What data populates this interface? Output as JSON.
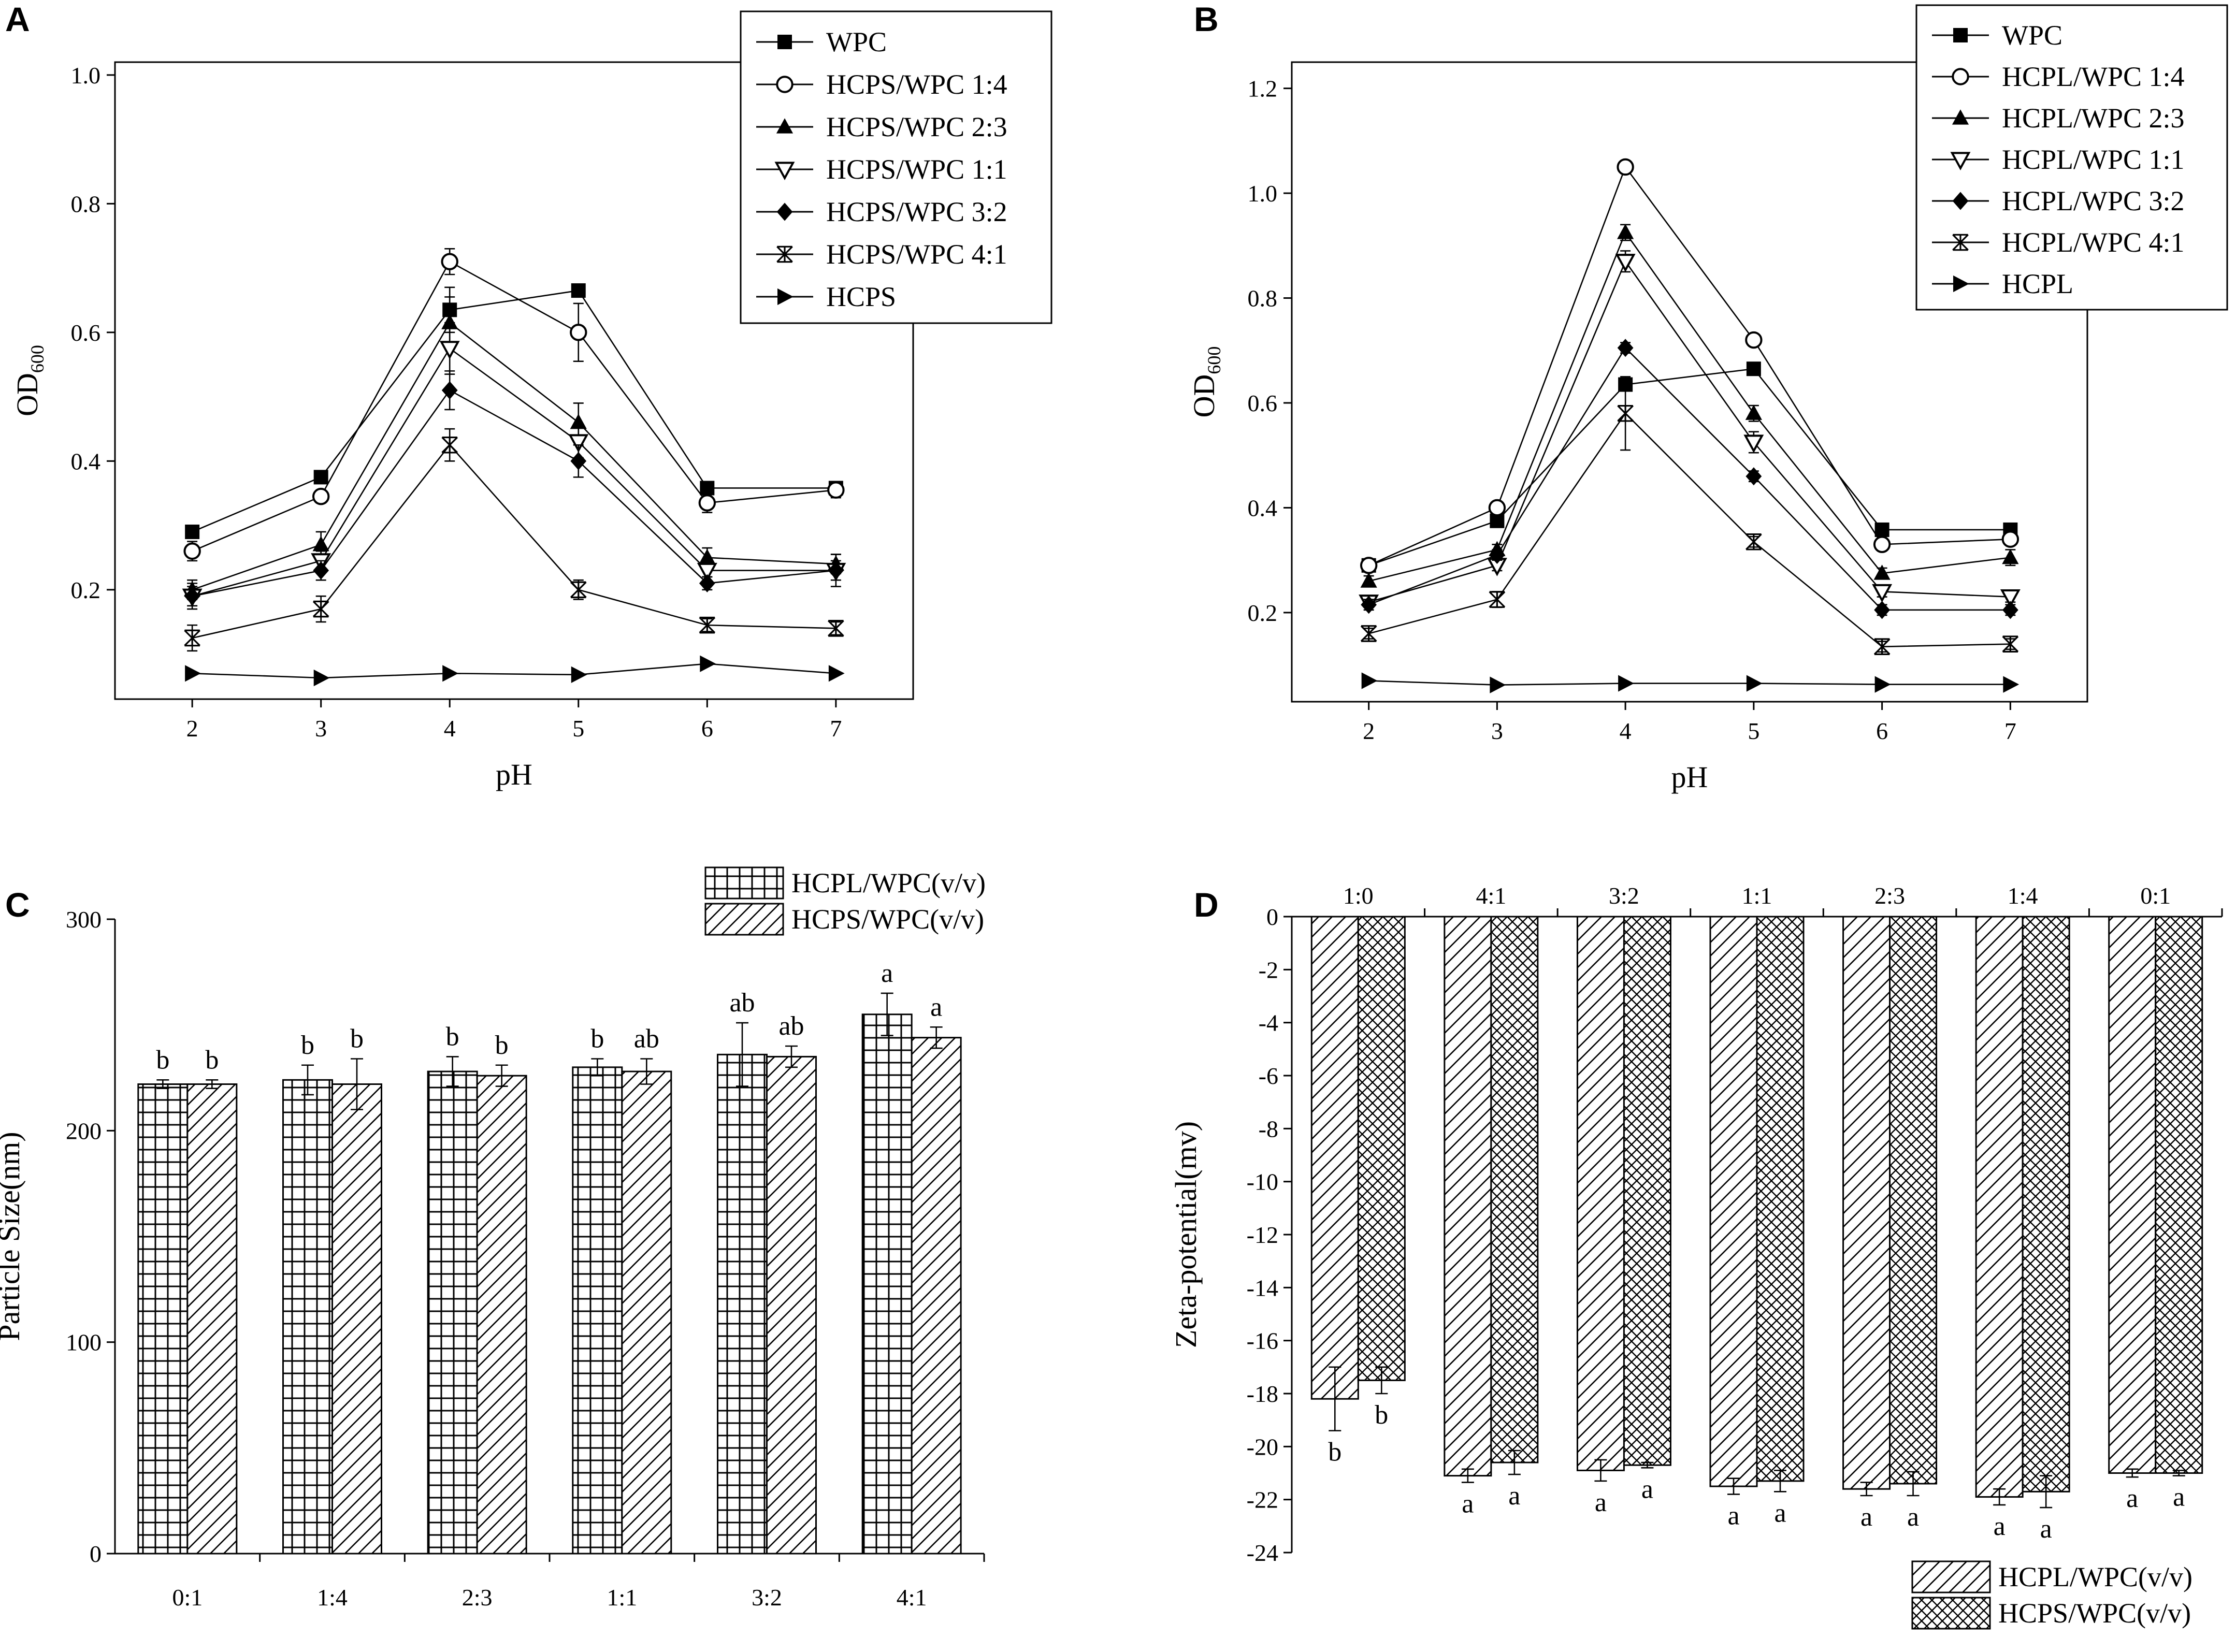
{
  "chart_data": [
    {
      "panel": "A",
      "type": "line",
      "xlabel": "pH",
      "ylabel": "OD",
      "ylabel_sub": "600",
      "x": [
        2,
        3,
        4,
        5,
        6,
        7
      ],
      "xlim": [
        1.4,
        7.6
      ],
      "ylim": [
        0.03,
        1.02
      ],
      "xticks": [
        "2",
        "3",
        "4",
        "5",
        "6",
        "7"
      ],
      "yticks": [
        "0.2",
        "0.4",
        "0.6",
        "0.8",
        "1.0"
      ],
      "legend_position": "top-right",
      "series": [
        {
          "name": "WPC",
          "marker": "square-filled",
          "values": [
            0.29,
            0.375,
            0.635,
            0.665,
            0.358,
            0.358
          ],
          "errors": [
            0.008,
            0.008,
            0.035,
            0.008,
            0.008,
            0.008
          ]
        },
        {
          "name": "HCPS/WPC 1:4",
          "marker": "circle-open",
          "values": [
            0.26,
            0.345,
            0.71,
            0.6,
            0.335,
            0.355
          ],
          "errors": [
            0.015,
            0.01,
            0.02,
            0.045,
            0.015,
            0.012
          ]
        },
        {
          "name": "HCPS/WPC 2:3",
          "marker": "triangle-up-filled",
          "values": [
            0.2,
            0.27,
            0.615,
            0.46,
            0.25,
            0.24
          ],
          "errors": [
            0.015,
            0.02,
            0.04,
            0.03,
            0.015,
            0.015
          ]
        },
        {
          "name": "HCPS/WPC 1:1",
          "marker": "triangle-down-open",
          "values": [
            0.19,
            0.245,
            0.575,
            0.43,
            0.23,
            0.23
          ],
          "errors": [
            0.02,
            0.015,
            0.04,
            0.025,
            0.01,
            0.015
          ]
        },
        {
          "name": "HCPS/WPC 3:2",
          "marker": "diamond-filled",
          "values": [
            0.19,
            0.23,
            0.51,
            0.4,
            0.21,
            0.23
          ],
          "errors": [
            0.015,
            0.015,
            0.03,
            0.025,
            0.01,
            0.025
          ]
        },
        {
          "name": "HCPS/WPC 4:1",
          "marker": "star-x",
          "values": [
            0.125,
            0.17,
            0.425,
            0.2,
            0.145,
            0.14
          ],
          "errors": [
            0.02,
            0.02,
            0.025,
            0.015,
            0.01,
            0.01
          ]
        },
        {
          "name": "HCPS",
          "marker": "triangle-right-filled",
          "values": [
            0.07,
            0.063,
            0.07,
            0.068,
            0.085,
            0.07
          ],
          "errors": [
            0,
            0,
            0,
            0,
            0,
            0
          ]
        }
      ]
    },
    {
      "panel": "B",
      "type": "line",
      "xlabel": "pH",
      "ylabel": "OD",
      "ylabel_sub": "600",
      "x": [
        2,
        3,
        4,
        5,
        6,
        7
      ],
      "xlim": [
        1.4,
        7.6
      ],
      "ylim": [
        0.03,
        1.25
      ],
      "xticks": [
        "2",
        "3",
        "4",
        "5",
        "6",
        "7"
      ],
      "yticks": [
        "0.2",
        "0.4",
        "0.6",
        "0.8",
        "1.0",
        "1.2"
      ],
      "legend_position": "top-right",
      "series": [
        {
          "name": "WPC",
          "marker": "square-filled",
          "values": [
            0.29,
            0.375,
            0.635,
            0.665,
            0.358,
            0.358
          ],
          "errors": [
            0.008,
            0.008,
            0.008,
            0.008,
            0.008,
            0.008
          ]
        },
        {
          "name": "HCPL/WPC 1:4",
          "marker": "circle-open",
          "values": [
            0.29,
            0.4,
            1.05,
            0.72,
            0.33,
            0.34
          ],
          "errors": [
            0.01,
            0.01,
            0.01,
            0.01,
            0.01,
            0.01
          ]
        },
        {
          "name": "HCPL/WPC 2:3",
          "marker": "triangle-up-filled",
          "values": [
            0.26,
            0.32,
            0.925,
            0.58,
            0.275,
            0.305
          ],
          "errors": [
            0.01,
            0.01,
            0.015,
            0.015,
            0.01,
            0.015
          ]
        },
        {
          "name": "HCPL/WPC 1:1",
          "marker": "triangle-down-open",
          "values": [
            0.22,
            0.29,
            0.87,
            0.525,
            0.24,
            0.23
          ],
          "errors": [
            0.01,
            0.01,
            0.02,
            0.02,
            0.01,
            0.01
          ]
        },
        {
          "name": "HCPL/WPC 3:2",
          "marker": "diamond-filled",
          "values": [
            0.215,
            0.31,
            0.705,
            0.46,
            0.205,
            0.205
          ],
          "errors": [
            0.01,
            0.01,
            0.01,
            0.01,
            0.01,
            0.01
          ]
        },
        {
          "name": "HCPL/WPC 4:1",
          "marker": "star-x",
          "values": [
            0.16,
            0.225,
            0.58,
            0.335,
            0.135,
            0.14
          ],
          "errors": [
            0.01,
            0.015,
            0.07,
            0.01,
            0.01,
            0.01
          ]
        },
        {
          "name": "HCPL",
          "marker": "triangle-right-filled",
          "values": [
            0.07,
            0.062,
            0.065,
            0.065,
            0.063,
            0.063
          ],
          "errors": [
            0,
            0,
            0,
            0,
            0,
            0
          ]
        }
      ]
    },
    {
      "panel": "C",
      "type": "bar",
      "xlabel": "",
      "ylabel": "Particle Size(nm)",
      "categories": [
        "0:1",
        "1:4",
        "2:3",
        "1:1",
        "3:2",
        "4:1"
      ],
      "ylim": [
        0,
        300
      ],
      "yticks": [
        "0",
        "100",
        "200",
        "300"
      ],
      "legend_position": "top-right",
      "series": [
        {
          "name": "HCPL/WPC(v/v)",
          "pattern": "grid",
          "values": [
            222,
            224,
            228,
            230,
            236,
            255
          ],
          "errors": [
            2,
            7,
            7,
            4,
            15,
            10
          ],
          "letters": [
            "b",
            "b",
            "b",
            "b",
            "ab",
            "a"
          ]
        },
        {
          "name": "HCPS/WPC(v/v)",
          "pattern": "diagonal",
          "values": [
            222,
            222,
            226,
            228,
            235,
            244
          ],
          "errors": [
            2,
            12,
            5,
            6,
            5,
            5
          ],
          "letters": [
            "b",
            "b",
            "b",
            "ab",
            "ab",
            "a"
          ]
        }
      ]
    },
    {
      "panel": "D",
      "type": "bar",
      "xlabel": "",
      "ylabel": "Zeta-potential(mv)",
      "categories": [
        "1:0",
        "4:1",
        "3:2",
        "1:1",
        "2:3",
        "1:4",
        "0:1"
      ],
      "ylim": [
        -24,
        0
      ],
      "yticks": [
        "0",
        "-2",
        "-4",
        "-6",
        "-8",
        "-10",
        "-12",
        "-14",
        "-16",
        "-18",
        "-20",
        "-22",
        "-24"
      ],
      "legend_position": "bottom-right",
      "series": [
        {
          "name": "HCPL/WPC(v/v)",
          "pattern": "diagonal",
          "values": [
            -18.2,
            -21.1,
            -20.9,
            -21.5,
            -21.6,
            -21.9,
            -21.0
          ],
          "errors": [
            1.2,
            0.25,
            0.4,
            0.3,
            0.25,
            0.3,
            0.15
          ],
          "letters": [
            "b",
            "a",
            "a",
            "a",
            "a",
            "a",
            "a"
          ]
        },
        {
          "name": "HCPS/WPC(v/v)",
          "pattern": "crosshatch",
          "values": [
            -17.5,
            -20.6,
            -20.7,
            -21.3,
            -21.4,
            -21.7,
            -21.0
          ],
          "errors": [
            0.5,
            0.45,
            0.1,
            0.4,
            0.45,
            0.6,
            0.1
          ],
          "letters": [
            "b",
            "a",
            "a",
            "a",
            "a",
            "a",
            "a"
          ]
        }
      ]
    }
  ]
}
